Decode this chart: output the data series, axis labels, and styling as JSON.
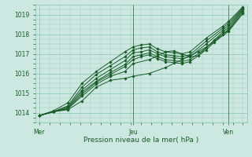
{
  "background_color": "#cce8e0",
  "grid_color": "#88c4b0",
  "line_color": "#1a5c28",
  "text_color": "#1a5c28",
  "xlabel": "Pression niveau de la mer( hPa )",
  "yticks": [
    1014,
    1015,
    1016,
    1017,
    1018,
    1019
  ],
  "xtick_labels": [
    "Mer",
    "Jeu",
    "Ven"
  ],
  "xtick_positions": [
    0.0,
    0.46,
    0.93
  ],
  "ylim": [
    1013.5,
    1019.5
  ],
  "xlim": [
    -0.02,
    1.02
  ],
  "series": [
    [
      [
        0.0,
        1013.85
      ],
      [
        0.07,
        1014.05
      ],
      [
        0.14,
        1014.15
      ],
      [
        0.21,
        1014.6
      ],
      [
        0.28,
        1015.3
      ],
      [
        0.35,
        1015.65
      ],
      [
        0.42,
        1015.75
      ],
      [
        0.46,
        1015.85
      ],
      [
        0.54,
        1016.0
      ],
      [
        0.62,
        1016.3
      ],
      [
        0.7,
        1016.7
      ],
      [
        0.78,
        1017.1
      ],
      [
        0.86,
        1017.6
      ],
      [
        0.93,
        1018.15
      ],
      [
        1.0,
        1019.05
      ]
    ],
    [
      [
        0.0,
        1013.85
      ],
      [
        0.07,
        1014.05
      ],
      [
        0.14,
        1014.2
      ],
      [
        0.21,
        1014.85
      ],
      [
        0.28,
        1015.45
      ],
      [
        0.35,
        1015.85
      ],
      [
        0.42,
        1016.1
      ],
      [
        0.46,
        1016.5
      ],
      [
        0.54,
        1016.7
      ],
      [
        0.58,
        1016.9
      ],
      [
        0.62,
        1017.1
      ],
      [
        0.66,
        1017.15
      ],
      [
        0.7,
        1017.0
      ],
      [
        0.74,
        1016.85
      ],
      [
        0.78,
        1016.9
      ],
      [
        0.86,
        1017.7
      ],
      [
        0.93,
        1018.2
      ],
      [
        1.0,
        1019.1
      ]
    ],
    [
      [
        0.0,
        1013.85
      ],
      [
        0.07,
        1014.05
      ],
      [
        0.14,
        1014.2
      ],
      [
        0.21,
        1014.95
      ],
      [
        0.28,
        1015.55
      ],
      [
        0.35,
        1015.95
      ],
      [
        0.42,
        1016.35
      ],
      [
        0.46,
        1016.7
      ],
      [
        0.5,
        1016.85
      ],
      [
        0.54,
        1016.95
      ],
      [
        0.58,
        1016.75
      ],
      [
        0.62,
        1016.6
      ],
      [
        0.66,
        1016.55
      ],
      [
        0.7,
        1016.5
      ],
      [
        0.74,
        1016.6
      ],
      [
        0.82,
        1017.2
      ],
      [
        0.9,
        1018.0
      ],
      [
        0.93,
        1018.25
      ],
      [
        1.0,
        1019.2
      ]
    ],
    [
      [
        0.0,
        1013.85
      ],
      [
        0.07,
        1014.05
      ],
      [
        0.14,
        1014.25
      ],
      [
        0.21,
        1015.05
      ],
      [
        0.28,
        1015.6
      ],
      [
        0.35,
        1016.05
      ],
      [
        0.42,
        1016.45
      ],
      [
        0.46,
        1016.85
      ],
      [
        0.5,
        1016.95
      ],
      [
        0.54,
        1017.05
      ],
      [
        0.58,
        1016.85
      ],
      [
        0.62,
        1016.7
      ],
      [
        0.66,
        1016.65
      ],
      [
        0.7,
        1016.6
      ],
      [
        0.74,
        1016.7
      ],
      [
        0.82,
        1017.3
      ],
      [
        0.9,
        1018.1
      ],
      [
        0.93,
        1018.35
      ],
      [
        1.0,
        1019.25
      ]
    ],
    [
      [
        0.0,
        1013.85
      ],
      [
        0.07,
        1014.05
      ],
      [
        0.14,
        1014.3
      ],
      [
        0.21,
        1015.15
      ],
      [
        0.28,
        1015.75
      ],
      [
        0.35,
        1016.2
      ],
      [
        0.42,
        1016.65
      ],
      [
        0.46,
        1017.05
      ],
      [
        0.5,
        1017.1
      ],
      [
        0.54,
        1017.2
      ],
      [
        0.58,
        1017.0
      ],
      [
        0.62,
        1016.85
      ],
      [
        0.66,
        1016.8
      ],
      [
        0.7,
        1016.75
      ],
      [
        0.74,
        1016.85
      ],
      [
        0.82,
        1017.5
      ],
      [
        0.9,
        1018.2
      ],
      [
        0.93,
        1018.45
      ],
      [
        1.0,
        1019.3
      ]
    ],
    [
      [
        0.0,
        1013.85
      ],
      [
        0.07,
        1014.05
      ],
      [
        0.14,
        1014.35
      ],
      [
        0.21,
        1015.3
      ],
      [
        0.28,
        1015.95
      ],
      [
        0.35,
        1016.4
      ],
      [
        0.42,
        1016.85
      ],
      [
        0.46,
        1017.2
      ],
      [
        0.5,
        1017.3
      ],
      [
        0.54,
        1017.35
      ],
      [
        0.58,
        1017.1
      ],
      [
        0.62,
        1016.95
      ],
      [
        0.66,
        1016.9
      ],
      [
        0.7,
        1016.85
      ],
      [
        0.74,
        1016.95
      ],
      [
        0.82,
        1017.65
      ],
      [
        0.9,
        1018.3
      ],
      [
        0.93,
        1018.55
      ],
      [
        1.0,
        1019.35
      ]
    ],
    [
      [
        0.0,
        1013.85
      ],
      [
        0.07,
        1014.1
      ],
      [
        0.14,
        1014.5
      ],
      [
        0.21,
        1015.5
      ],
      [
        0.28,
        1016.1
      ],
      [
        0.35,
        1016.6
      ],
      [
        0.42,
        1017.1
      ],
      [
        0.46,
        1017.35
      ],
      [
        0.5,
        1017.45
      ],
      [
        0.54,
        1017.5
      ],
      [
        0.58,
        1017.25
      ],
      [
        0.62,
        1017.1
      ],
      [
        0.66,
        1017.05
      ],
      [
        0.7,
        1017.0
      ],
      [
        0.74,
        1017.1
      ],
      [
        0.82,
        1017.8
      ],
      [
        0.9,
        1018.4
      ],
      [
        0.93,
        1018.65
      ],
      [
        1.0,
        1019.4
      ]
    ]
  ]
}
